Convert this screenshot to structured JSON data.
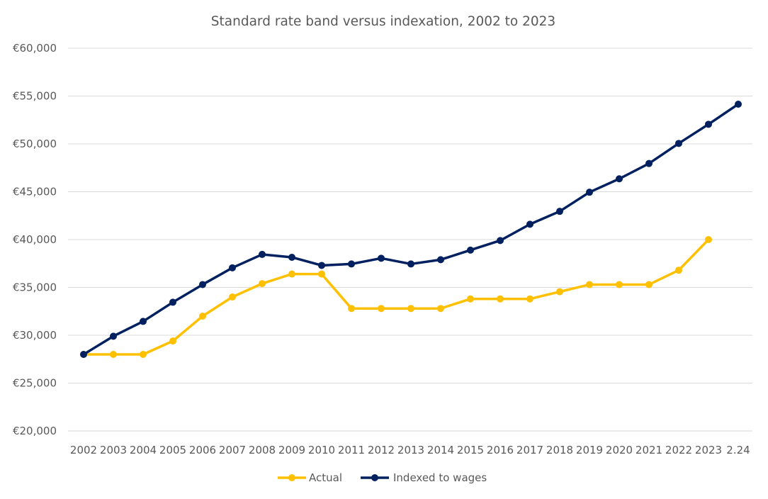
{
  "chart_data": {
    "type": "line",
    "title": "Standard rate band versus indexation, 2002 to 2023",
    "xlabel": "",
    "ylabel": "",
    "categories": [
      "2002",
      "2003",
      "2004",
      "2005",
      "2006",
      "2007",
      "2008",
      "2009",
      "2010",
      "2011",
      "2012",
      "2013",
      "2014",
      "2015",
      "2016",
      "2017",
      "2018",
      "2019",
      "2020",
      "2021",
      "2022",
      "2023",
      "2.24"
    ],
    "ylim": [
      20000,
      60000
    ],
    "yticks": [
      20000,
      25000,
      30000,
      35000,
      40000,
      45000,
      50000,
      55000,
      60000
    ],
    "ytick_labels": [
      "€20,000",
      "€25,000",
      "€30,000",
      "€35,000",
      "€40,000",
      "€45,000",
      "€50,000",
      "€55,000",
      "€60,000"
    ],
    "grid": "horizontal",
    "legend_position": "bottom",
    "series": [
      {
        "name": "Actual",
        "color": "#FFC000",
        "values": [
          28000,
          28000,
          28000,
          29400,
          32000,
          34000,
          35400,
          36400,
          36400,
          32800,
          32800,
          32800,
          32800,
          33800,
          33800,
          33800,
          34550,
          35300,
          35300,
          35300,
          36800,
          40000,
          null
        ]
      },
      {
        "name": "Indexed to wages",
        "color": "#002060",
        "values": [
          28000,
          29900,
          31450,
          33450,
          35300,
          37050,
          38450,
          38150,
          37300,
          37450,
          38050,
          37450,
          37900,
          38900,
          39900,
          41600,
          42950,
          44950,
          46350,
          47950,
          50050,
          52050,
          54150
        ]
      }
    ]
  }
}
